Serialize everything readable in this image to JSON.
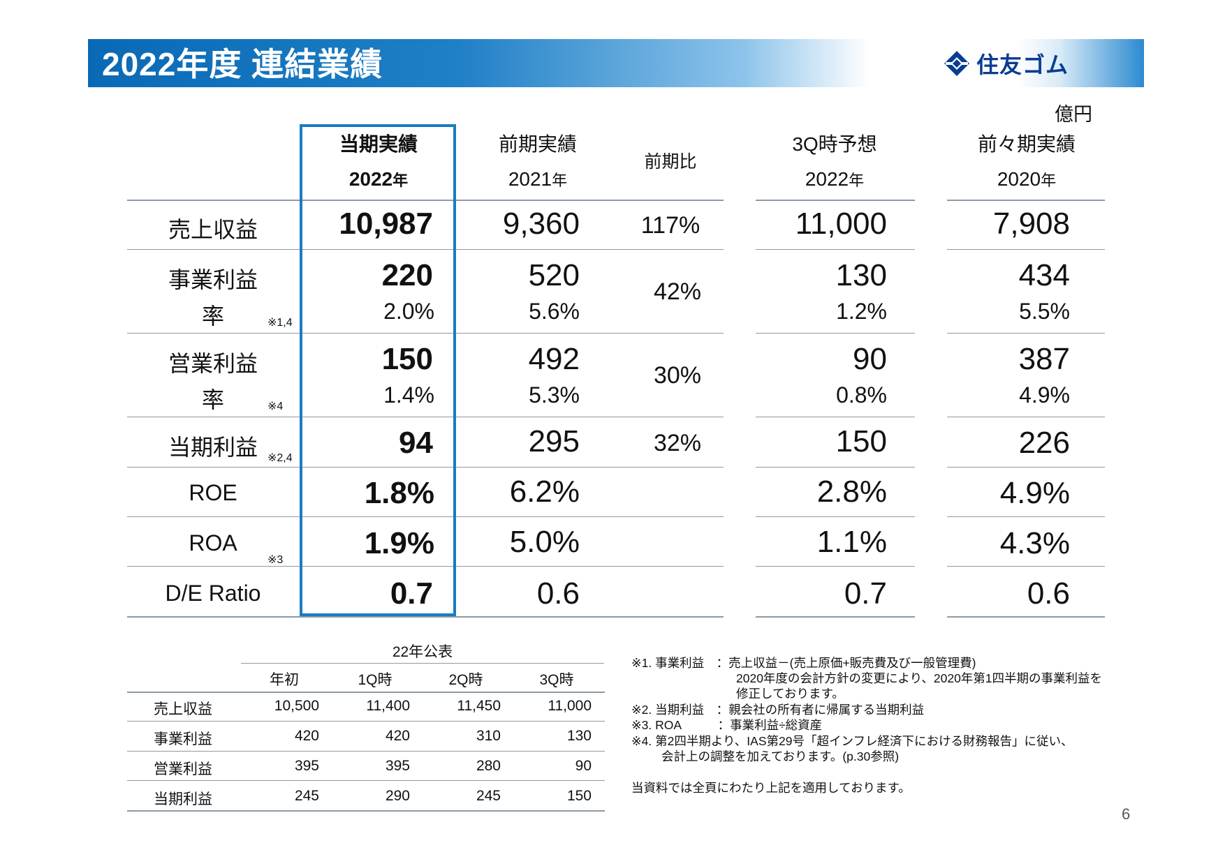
{
  "header": {
    "title": "2022年度 連結業績",
    "logo_text": "住友ゴム",
    "logo_icon": "sumitomo-diamond-icon"
  },
  "unit": "億円",
  "columns": {
    "current": {
      "line1": "当期実績",
      "year": "2022",
      "suffix": "年"
    },
    "prev": {
      "line1": "前期実績",
      "year": "2021",
      "suffix": "年"
    },
    "ratio": {
      "line1": "前期比"
    },
    "forecast": {
      "line1": "3Q時予想",
      "year": "2022",
      "suffix": "年"
    },
    "prevprev": {
      "line1": "前々期実績",
      "year": "2020",
      "suffix": "年"
    }
  },
  "rows": [
    {
      "label": "売上収益",
      "note": "",
      "current": "10,987",
      "prev": "9,360",
      "ratio": "117%",
      "forecast": "11,000",
      "prevprev": "7,908"
    },
    {
      "label": "事業利益",
      "sublabel": "率",
      "note": "※1,4",
      "current": "220",
      "current_rate": "2.0%",
      "prev": "520",
      "prev_rate": "5.6%",
      "ratio": "42%",
      "forecast": "130",
      "forecast_rate": "1.2%",
      "prevprev": "434",
      "prevprev_rate": "5.5%"
    },
    {
      "label": "営業利益",
      "sublabel": "率",
      "note": "※4",
      "current": "150",
      "current_rate": "1.4%",
      "prev": "492",
      "prev_rate": "5.3%",
      "ratio": "30%",
      "forecast": "90",
      "forecast_rate": "0.8%",
      "prevprev": "387",
      "prevprev_rate": "4.9%"
    },
    {
      "label": "当期利益",
      "note": "※2,4",
      "current": "94",
      "prev": "295",
      "ratio": "32%",
      "forecast": "150",
      "prevprev": "226"
    },
    {
      "label": "ROE",
      "note": "",
      "current": "1.8%",
      "prev": "6.2%",
      "ratio": "",
      "forecast": "2.8%",
      "prevprev": "4.9%"
    },
    {
      "label": "ROA",
      "note": "※3",
      "current": "1.9%",
      "prev": "5.0%",
      "ratio": "",
      "forecast": "1.1%",
      "prevprev": "4.3%"
    },
    {
      "label": "D/E Ratio",
      "note": "",
      "current": "0.7",
      "prev": "0.6",
      "ratio": "",
      "forecast": "0.7",
      "prevprev": "0.6"
    }
  ],
  "announcement": {
    "title": "22年公表",
    "columns": [
      "年初",
      "1Q時",
      "2Q時",
      "3Q時"
    ],
    "rows": [
      {
        "label": "売上収益",
        "values": [
          "10,500",
          "11,400",
          "11,450",
          "11,000"
        ]
      },
      {
        "label": "事業利益",
        "values": [
          "420",
          "420",
          "310",
          "130"
        ]
      },
      {
        "label": "営業利益",
        "values": [
          "395",
          "395",
          "280",
          "90"
        ]
      },
      {
        "label": "当期利益",
        "values": [
          "245",
          "290",
          "245",
          "150"
        ]
      }
    ]
  },
  "footnotes": [
    "※1.  事業利益　：売上収益－(売上原価+販売費及び一般管理費)",
    "2020年度の会計方針の変更により、2020年第1四半期の事業利益を",
    "修正しております。",
    "※2.  当期利益　：親会社の所有者に帰属する当期利益",
    "※3.  ROA　　　：事業利益÷総資産",
    "※4.  第2四半期より、IAS第29号「超インフレ経済下における財務報告」に従い、",
    "会計上の調整を加えております。(p.30参照)",
    "当資料では全頁にわたり上記を適用しております。"
  ],
  "page_number": "6"
}
